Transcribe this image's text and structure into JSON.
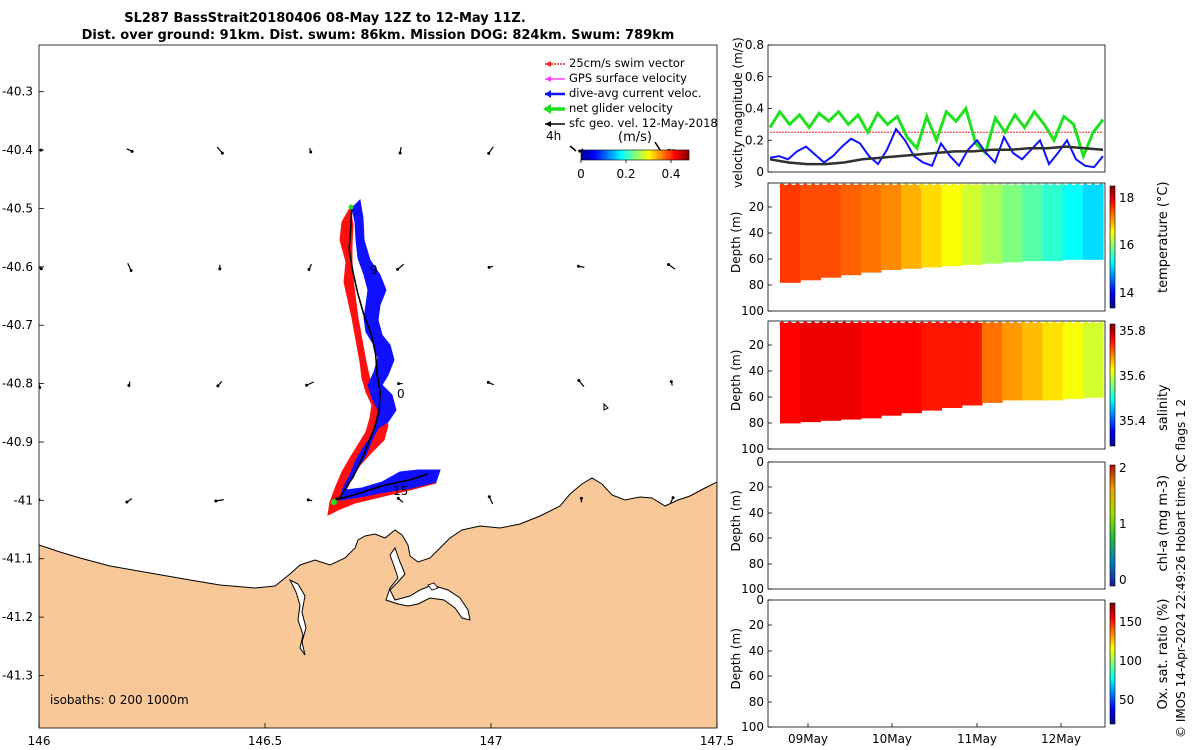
{
  "title": {
    "line1": "SL287 BassStrait20180406 08-May 12Z to 12-May 11Z.",
    "line2": "Dist. over ground: 91km. Dist. swum: 86km. Mission DOG: 824km. Swum: 789km"
  },
  "side_label": "© IMOS 14-Apr-2024 22:49:26 Hobart time. QC flags 1  2",
  "colors": {
    "land": "#f8c898",
    "swim_vector": "#ff2020",
    "gps_velocity": "#ff40ff",
    "dive_avg": "#1010ff",
    "net_glider": "#20e020",
    "sfc_geo": "#000000"
  },
  "chart_data": [
    {
      "type": "map",
      "xticks": [
        "146",
        "146.5",
        "147",
        "147.5"
      ],
      "yticks": [
        "-40.3",
        "-40.4",
        "-40.5",
        "-40.6",
        "-40.7",
        "-40.8",
        "-40.9",
        "-41",
        "-41.1",
        "-41.2",
        "-41.3"
      ],
      "xlim": [
        146,
        147.5
      ],
      "ylim": [
        -41.39,
        -40.22
      ],
      "legend": [
        {
          "label": "25cm/s swim vector",
          "color": "#ff2020"
        },
        {
          "label": "GPS surface velocity",
          "color": "#ff40ff"
        },
        {
          "label": "dive-avg current veloc.",
          "color": "#1010ff"
        },
        {
          "label": "net glider velocity",
          "color": "#20e020"
        },
        {
          "label": "sfc geo. vel. 12-May-2018",
          "color": "#000000"
        }
      ],
      "scale_label": "4h",
      "colorbar": {
        "unit": "(m/s)",
        "ticks": [
          "0",
          "0.2",
          "0.4"
        ],
        "range": [
          0,
          0.48
        ]
      },
      "track_labels": [
        "9",
        "0",
        "15"
      ],
      "isobaths_label": "isobaths: 0   200  1000m",
      "track": [
        [
          146.692,
          -40.495
        ],
        [
          146.69,
          -40.53
        ],
        [
          146.686,
          -40.57
        ],
        [
          146.695,
          -40.61
        ],
        [
          146.705,
          -40.645
        ],
        [
          146.718,
          -40.68
        ],
        [
          146.735,
          -40.715
        ],
        [
          146.745,
          -40.75
        ],
        [
          146.748,
          -40.785
        ],
        [
          146.755,
          -40.815
        ],
        [
          146.752,
          -40.85
        ],
        [
          146.74,
          -40.88
        ],
        [
          146.72,
          -40.92
        ],
        [
          146.695,
          -40.96
        ],
        [
          146.665,
          -40.995
        ],
        [
          146.652,
          -41.0
        ],
        [
          146.7,
          -40.99
        ],
        [
          146.76,
          -40.975
        ],
        [
          146.82,
          -40.965
        ],
        [
          146.86,
          -40.955
        ]
      ]
    },
    {
      "type": "line",
      "ylabel": "velocity magnitude (m/s)",
      "ylim": [
        0,
        0.8
      ],
      "yticks": [
        "0",
        "0.2",
        "0.4",
        "0.6",
        "0.8"
      ],
      "xlim": [
        0,
        4
      ],
      "series": [
        {
          "color": "#ff2020",
          "values": [
            0.25,
            0.25,
            0.25,
            0.25,
            0.25,
            0.25,
            0.25,
            0.25,
            0.25
          ]
        },
        {
          "color": "#20e020",
          "values": [
            0.28,
            0.38,
            0.3,
            0.36,
            0.28,
            0.37,
            0.32,
            0.38,
            0.3,
            0.36,
            0.25,
            0.37,
            0.3,
            0.35,
            0.22,
            0.15,
            0.35,
            0.2,
            0.38,
            0.32,
            0.4,
            0.18,
            0.12,
            0.34,
            0.25,
            0.36,
            0.28,
            0.38,
            0.3,
            0.2,
            0.35,
            0.3,
            0.1,
            0.25,
            0.33
          ]
        },
        {
          "color": "#1010ff",
          "values": [
            0.09,
            0.1,
            0.08,
            0.13,
            0.16,
            0.11,
            0.06,
            0.1,
            0.16,
            0.21,
            0.18,
            0.1,
            0.05,
            0.14,
            0.27,
            0.2,
            0.1,
            0.06,
            0.04,
            0.18,
            0.1,
            0.04,
            0.14,
            0.2,
            0.12,
            0.06,
            0.22,
            0.12,
            0.08,
            0.14,
            0.2,
            0.05,
            0.12,
            0.2,
            0.08,
            0.04,
            0.03,
            0.1
          ]
        },
        {
          "color": "#303030",
          "values": [
            0.08,
            0.06,
            0.05,
            0.05,
            0.06,
            0.08,
            0.09,
            0.1,
            0.11,
            0.12,
            0.13,
            0.13,
            0.14,
            0.14,
            0.15,
            0.15,
            0.16,
            0.15,
            0.14
          ]
        }
      ]
    },
    {
      "type": "heatmap",
      "name": "temperature",
      "ylabel": "Depth (m)",
      "cbar_label": "temperature (°C)",
      "cbar_ticks": [
        "14",
        "16",
        "18"
      ],
      "clim": [
        13.5,
        18.5
      ],
      "yticks": [
        "20",
        "40",
        "60",
        "80",
        "100"
      ],
      "column_values": [
        17.6,
        17.5,
        17.5,
        17.4,
        17.3,
        17.2,
        17.0,
        16.8,
        16.6,
        16.4,
        16.2,
        16.0,
        15.8,
        15.6,
        15.4,
        15.2
      ],
      "bottom_depth": [
        78,
        76,
        74,
        72,
        70,
        68,
        67,
        66,
        65,
        64,
        63,
        62,
        61,
        61,
        60,
        60
      ]
    },
    {
      "type": "heatmap",
      "name": "salinity",
      "ylabel": "Depth (m)",
      "cbar_label": "salinity",
      "cbar_ticks": [
        "35.4",
        "35.6",
        "35.8"
      ],
      "clim": [
        35.3,
        35.85
      ],
      "yticks": [
        "20",
        "40",
        "60",
        "80",
        "100"
      ],
      "column_values": [
        35.78,
        35.79,
        35.79,
        35.79,
        35.78,
        35.78,
        35.78,
        35.77,
        35.77,
        35.77,
        35.72,
        35.7,
        35.68,
        35.66,
        35.64,
        35.62
      ],
      "bottom_depth": [
        80,
        79,
        78,
        77,
        76,
        74,
        72,
        70,
        68,
        66,
        64,
        62,
        62,
        62,
        61,
        60
      ]
    },
    {
      "type": "heatmap",
      "name": "chl-a",
      "ylabel": "Depth (m)",
      "cbar_label": "chl-a (mg m-3)",
      "cbar_ticks": [
        "0",
        "1",
        "2"
      ],
      "yticks": [
        "0",
        "20",
        "40",
        "60",
        "80",
        "100"
      ]
    },
    {
      "type": "heatmap",
      "name": "oxygen",
      "ylabel": "Depth (m)",
      "cbar_label": "Ox. sat. ratio (%)",
      "cbar_ticks": [
        "50",
        "100",
        "150"
      ],
      "yticks": [
        "0",
        "20",
        "40",
        "60",
        "80",
        "100"
      ],
      "xticks": [
        "09May",
        "10May",
        "11May",
        "12May"
      ]
    }
  ]
}
